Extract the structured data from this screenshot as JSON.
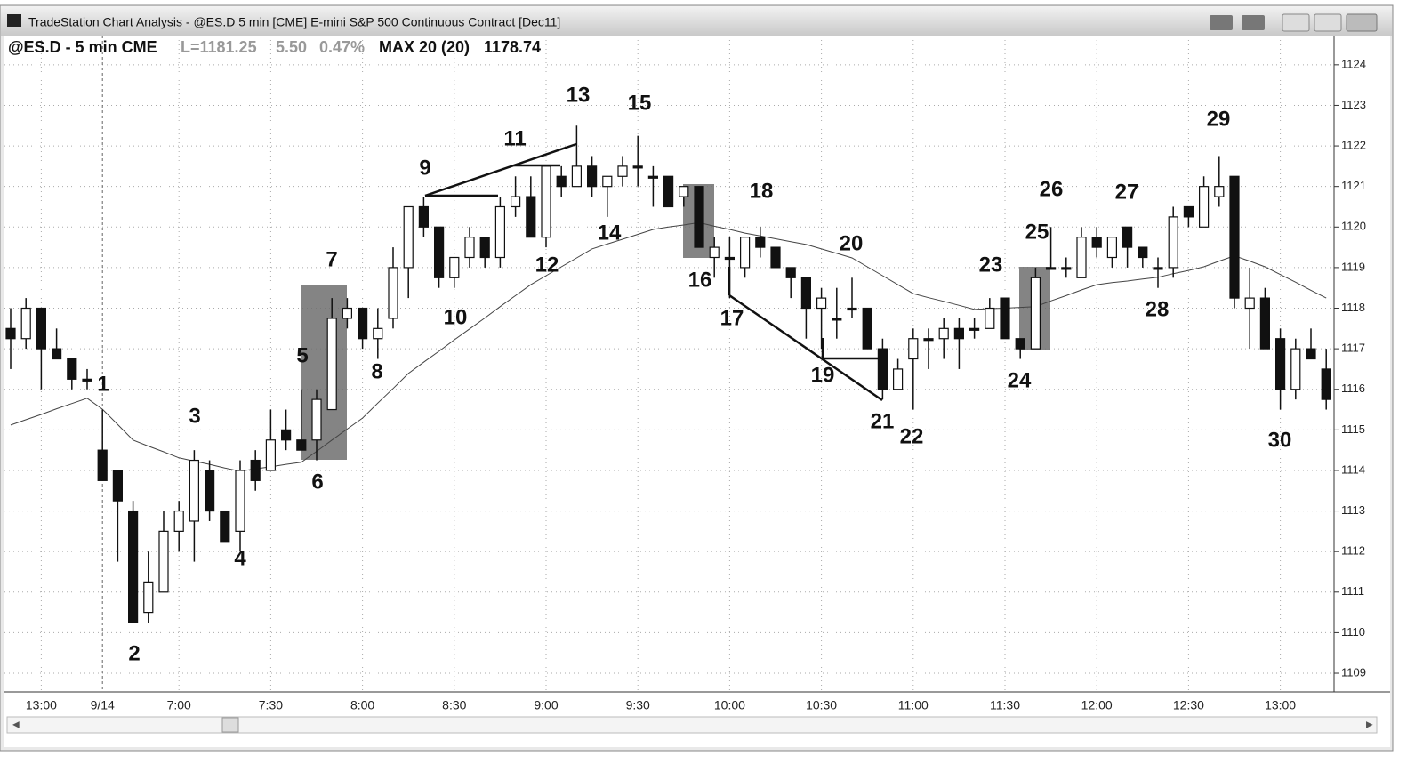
{
  "window": {
    "title": "TradeStation Chart Analysis - @ES.D 5 min [CME] E-mini S&P 500 Continuous Contract [Dec11]"
  },
  "info": {
    "symbol": "@ES.D - 5 min CME",
    "last": "L=1181.25",
    "change": "5.50",
    "change_pct": "0.47%",
    "indicator": "MAX 20 (20)",
    "indicator_value": "1178.74"
  },
  "chart_data": {
    "type": "candlestick",
    "categories": [
      null,
      null,
      "13:00",
      null,
      null,
      null,
      "9/14",
      null,
      null,
      null,
      null,
      "7:00",
      null,
      null,
      null,
      null,
      null,
      "7:30",
      null,
      null,
      null,
      null,
      null,
      "8:00",
      null,
      null,
      null,
      null,
      null,
      "8:30",
      null,
      null,
      null,
      null,
      null,
      "9:00",
      null,
      null,
      null,
      null,
      null,
      "9:30",
      null,
      null,
      null,
      null,
      null,
      "10:00",
      null,
      null,
      null,
      null,
      null,
      "10:30",
      null,
      null,
      null,
      null,
      null,
      "11:00",
      null,
      null,
      null,
      null,
      null,
      "11:30",
      null,
      null,
      null,
      null,
      null,
      "12:00",
      null,
      null,
      null,
      null,
      null,
      "12:30",
      null,
      null,
      null,
      null,
      null,
      "13:00",
      null,
      null,
      null
    ],
    "open": [
      1117.5,
      1117.25,
      1118,
      1117,
      1116.75,
      1116.25,
      1114.5,
      1114,
      1113,
      1110.5,
      1111,
      1112.5,
      1112.75,
      1114,
      1113,
      1112.5,
      1114.25,
      1114,
      1115,
      1114.75,
      1114.75,
      1115.5,
      1117.75,
      1118,
      1117.25,
      1117.75,
      1119,
      1120.5,
      1120,
      1118.75,
      1119.25,
      1119.75,
      1119.25,
      1120.5,
      1120.75,
      1119.75,
      1121.25,
      1121,
      1121.5,
      1121,
      1121.25,
      1121.5,
      1121.25,
      1121.25,
      1120.75,
      1121,
      1119.25,
      1119.25,
      1119,
      1119.75,
      1119.5,
      1119,
      1118.75,
      1118,
      1117.75,
      1118,
      1118,
      1117,
      1116,
      1116.75,
      1117.25,
      1117.25,
      1117.5,
      1117.5,
      1117.5,
      1118.25,
      1117.25,
      1117,
      1119,
      1119,
      1118.75,
      1119.75,
      1119.25,
      1120,
      1119.5,
      1119,
      1119,
      1120.5,
      1120,
      1120.75,
      1121.25,
      1118,
      1118.25,
      1117.25,
      1116,
      1117,
      1116.5
    ],
    "high": [
      1118,
      1118.25,
      1118,
      1117.5,
      1116.75,
      1116.5,
      1115.5,
      1114,
      1113.25,
      1112,
      1113,
      1113.25,
      1114.5,
      1114.25,
      1113,
      1114.25,
      1114.5,
      1115.5,
      1115.5,
      1116,
      1116,
      1118.25,
      1118.25,
      1118,
      1118,
      1119.5,
      1120.5,
      1120.75,
      1120,
      1119.25,
      1120,
      1119.75,
      1120.75,
      1121.25,
      1121.25,
      1121.5,
      1121.5,
      1122.5,
      1121.75,
      1121.25,
      1121.75,
      1122.25,
      1121.5,
      1121.25,
      1121,
      1121,
      1119.75,
      1119.75,
      1119.75,
      1120,
      1119.5,
      1119,
      1118.75,
      1118.5,
      1118.5,
      1118.75,
      1118,
      1117.25,
      1116.75,
      1117.5,
      1117.5,
      1117.75,
      1117.75,
      1117.75,
      1118.25,
      1118.25,
      1117.25,
      1119,
      1120,
      1119.25,
      1120,
      1120,
      1119.75,
      1120,
      1119.5,
      1119.25,
      1120.5,
      1120.5,
      1121.25,
      1121.75,
      1121.25,
      1119,
      1118.5,
      1117.5,
      1117.25,
      1117.5,
      1117
    ],
    "low": [
      1116.5,
      1117,
      1116,
      1116.75,
      1116,
      1116,
      1113.75,
      1111.75,
      1110.25,
      1110.25,
      1111,
      1112,
      1111.75,
      1112.75,
      1112.25,
      1112,
      1113.5,
      1114,
      1114.5,
      1114.5,
      1114.25,
      1115.5,
      1117.5,
      1117,
      1116.75,
      1117.5,
      1118.25,
      1119.75,
      1118.5,
      1118.5,
      1119,
      1119,
      1119,
      1120.25,
      1119.75,
      1119.5,
      1120.75,
      1121,
      1120.75,
      1120.25,
      1121,
      1121,
      1120.5,
      1120.5,
      1120.5,
      1119.5,
      1118.75,
      1118.25,
      1118.75,
      1119.25,
      1119,
      1118.25,
      1117.25,
      1117,
      1117.25,
      1117.75,
      1117,
      1115.75,
      1116,
      1115.5,
      1116.5,
      1116.75,
      1116.5,
      1117.25,
      1117.5,
      1117.25,
      1116.75,
      1117,
      1119,
      1118.75,
      1118.75,
      1119.25,
      1119,
      1119,
      1119,
      1118.5,
      1118.75,
      1120,
      1120,
      1120.5,
      1118,
      1117,
      1117,
      1115.5,
      1115.75,
      1116.75,
      1115.5
    ],
    "close": [
      1117.25,
      1118,
      1117,
      1116.75,
      1116.25,
      1116.25,
      1113.75,
      1113.25,
      1110.25,
      1111.25,
      1112.5,
      1113,
      1114.25,
      1113,
      1112.25,
      1114,
      1113.75,
      1114.75,
      1114.75,
      1114.5,
      1115.75,
      1117.75,
      1118,
      1117.25,
      1117.5,
      1119,
      1120.5,
      1120,
      1118.75,
      1119.25,
      1119.75,
      1119.25,
      1120.5,
      1120.75,
      1119.75,
      1121.5,
      1121,
      1121.5,
      1121,
      1121.25,
      1121.5,
      1121.5,
      1121.25,
      1120.5,
      1121,
      1119.5,
      1119.5,
      1119.25,
      1119.75,
      1119.5,
      1119,
      1118.75,
      1118,
      1118.25,
      1117.75,
      1118,
      1117,
      1116,
      1116.5,
      1117.25,
      1117.25,
      1117.5,
      1117.25,
      1117.5,
      1118,
      1117.25,
      1117,
      1118.75,
      1119,
      1119,
      1119.75,
      1119.5,
      1119.75,
      1119.5,
      1119.25,
      1119,
      1120.25,
      1120.25,
      1121,
      1121,
      1118.25,
      1118.25,
      1117,
      1116,
      1117,
      1116.75,
      1115.75
    ],
    "ma": [
      1115.12,
      1115.25,
      1115.38,
      1115.52,
      1115.65,
      1115.78,
      1115.51,
      1115.13,
      1114.75,
      1114.6,
      1114.46,
      1114.31,
      1114.23,
      1114.15,
      1114.06,
      1113.98,
      1114.04,
      1114.09,
      1114.15,
      1114.2,
      1114.47,
      1114.75,
      1115.02,
      1115.29,
      1115.66,
      1116.02,
      1116.39,
      1116.67,
      1116.94,
      1117.22,
      1117.49,
      1117.76,
      1118.04,
      1118.31,
      1118.58,
      1118.8,
      1119.02,
      1119.24,
      1119.46,
      1119.58,
      1119.7,
      1119.82,
      1119.94,
      1120,
      1120.05,
      1120.11,
      1120.02,
      1119.94,
      1119.85,
      1119.78,
      1119.71,
      1119.64,
      1119.57,
      1119.46,
      1119.35,
      1119.24,
      1119.02,
      1118.8,
      1118.58,
      1118.36,
      1118.26,
      1118.17,
      1118.07,
      1117.97,
      1117.99,
      1118,
      1118.02,
      1118.04,
      1118.18,
      1118.31,
      1118.45,
      1118.58,
      1118.63,
      1118.67,
      1118.72,
      1118.76,
      1118.85,
      1118.93,
      1119.02,
      1119.16,
      1119.29,
      1119.16,
      1119.02,
      1118.83,
      1118.64,
      1118.44,
      1118.25
    ],
    "ylim": [
      1108.54,
      1124.72
    ],
    "yticks": [
      1109,
      1110,
      1111,
      1112,
      1113,
      1114,
      1115,
      1116,
      1117,
      1118,
      1119,
      1120,
      1121,
      1122,
      1123,
      1124
    ],
    "grid": true,
    "annotations": [
      "1",
      "2",
      "3",
      "4",
      "5",
      "6",
      "7",
      "8",
      "9",
      "10",
      "11",
      "12",
      "13",
      "14",
      "15",
      "16",
      "17",
      "18",
      "19",
      "20",
      "21",
      "22",
      "23",
      "24",
      "25",
      "26",
      "27",
      "28",
      "29",
      "30"
    ]
  }
}
